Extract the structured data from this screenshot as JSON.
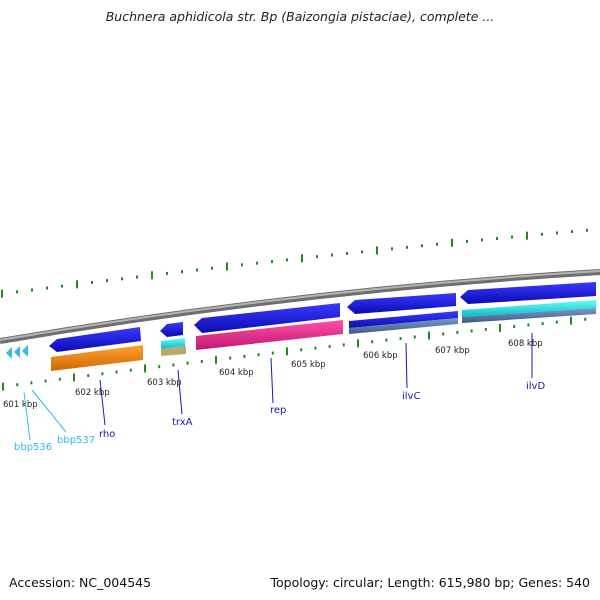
{
  "title": "Buchnera aphidicola str. Bp (Baizongia pistaciae), complete ...",
  "footer": {
    "accession": "Accession: NC_004545",
    "summary": "Topology: circular; Length: 615,980 bp; Genes: 540"
  },
  "ruler_ticks": [
    {
      "label": "601 kbp"
    },
    {
      "label": "602 kbp"
    },
    {
      "label": "603 kbp"
    },
    {
      "label": "604 kbp"
    },
    {
      "label": "605 kbp"
    },
    {
      "label": "606 kbp"
    },
    {
      "label": "607 kbp"
    },
    {
      "label": "608 kbp"
    }
  ],
  "genes": [
    {
      "name": "bbp536",
      "color": "#33bbee"
    },
    {
      "name": "bbp537",
      "color": "#33bbee"
    },
    {
      "name": "rho",
      "color": "#1a1aa8"
    },
    {
      "name": "trxA",
      "color": "#1a1aa8"
    },
    {
      "name": "rep",
      "color": "#1a1aa8"
    },
    {
      "name": "ilvC",
      "color": "#1a1aa8"
    },
    {
      "name": "ilvD",
      "color": "#1a1aa8"
    }
  ],
  "colors": {
    "backbone": "#8c8c8c",
    "gene_arrow": "#1414d8",
    "cds_orange": "#f08c1e",
    "cds_pink": "#e8308c",
    "cds_cyan": "#22d8d8",
    "cds_khaki": "#b8a870",
    "cds_steel": "#5a7ca8",
    "tick_green": "#1f8a1f"
  }
}
